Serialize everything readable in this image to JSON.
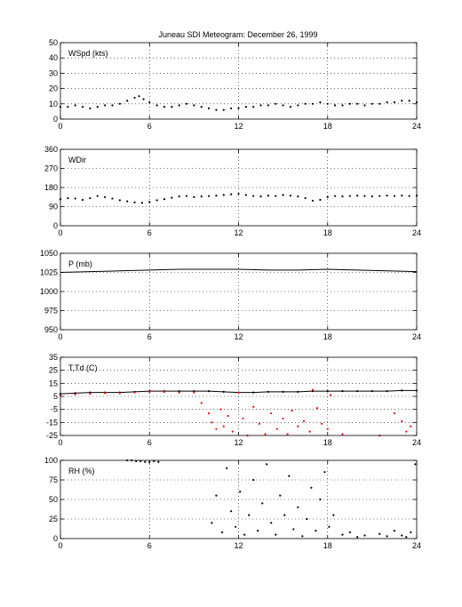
{
  "title": "Juneau SDI Meteogram:   December 26, 1999",
  "chart_data": [
    {
      "type": "scatter",
      "label": "WSpd (kts)",
      "ylim": [
        0,
        50
      ],
      "yticks": [
        0,
        10,
        20,
        30,
        40,
        50
      ],
      "xlim": [
        0,
        24
      ],
      "xticks": [
        0,
        6,
        12,
        18,
        24
      ],
      "grid": true,
      "series": [
        {
          "color": "#000000",
          "x": [
            0,
            0.5,
            1,
            1.5,
            2,
            2.5,
            3,
            3.5,
            4,
            4.5,
            5,
            5.3,
            5.6,
            6,
            6.5,
            7,
            7.5,
            8,
            8.5,
            9,
            9.5,
            10,
            10.5,
            11,
            11.5,
            12,
            12.5,
            13,
            13.5,
            14,
            14.5,
            15,
            15.5,
            16,
            16.5,
            17,
            17.5,
            18,
            18.5,
            19,
            19.5,
            20,
            20.5,
            21,
            21.5,
            22,
            22.5,
            23,
            23.5,
            24
          ],
          "y": [
            8,
            8,
            9,
            8,
            7,
            8,
            9,
            9,
            10,
            12,
            14,
            15,
            13,
            11,
            9,
            8,
            8,
            9,
            10,
            9,
            8,
            7,
            6,
            6,
            7,
            7,
            8,
            8,
            9,
            9,
            10,
            9,
            8,
            9,
            10,
            10,
            11,
            10,
            9,
            9,
            10,
            10,
            9,
            10,
            10,
            11,
            11,
            12,
            12,
            11
          ]
        }
      ]
    },
    {
      "type": "scatter",
      "label": "WDir",
      "ylim": [
        0,
        360
      ],
      "yticks": [
        0,
        90,
        180,
        270,
        360
      ],
      "xlim": [
        0,
        24
      ],
      "xticks": [
        0,
        6,
        12,
        18,
        24
      ],
      "grid": true,
      "series": [
        {
          "color": "#000000",
          "x": [
            0,
            0.5,
            1,
            1.5,
            2,
            2.5,
            3,
            3.5,
            4,
            4.5,
            5,
            5.5,
            6,
            6.5,
            7,
            7.5,
            8,
            8.5,
            9,
            9.5,
            10,
            10.5,
            11,
            11.5,
            12,
            12.5,
            13,
            13.5,
            14,
            14.5,
            15,
            15.5,
            16,
            16.5,
            17,
            17.5,
            18,
            18.5,
            19,
            19.5,
            20,
            20.5,
            21,
            21.5,
            22,
            22.5,
            23,
            23.5,
            24
          ],
          "y": [
            125,
            130,
            128,
            122,
            130,
            140,
            135,
            128,
            120,
            115,
            110,
            108,
            112,
            120,
            125,
            132,
            138,
            140,
            135,
            138,
            140,
            142,
            145,
            148,
            150,
            145,
            140,
            138,
            142,
            140,
            145,
            142,
            138,
            130,
            118,
            122,
            135,
            140,
            138,
            140,
            142,
            140,
            138,
            140,
            142,
            140,
            142,
            140,
            142
          ]
        }
      ]
    },
    {
      "type": "line",
      "label": "P (mb)",
      "ylim": [
        950,
        1050
      ],
      "yticks": [
        950,
        975,
        1000,
        1025,
        1050
      ],
      "xlim": [
        0,
        24
      ],
      "xticks": [
        0,
        6,
        12,
        18,
        24
      ],
      "grid": true,
      "series": [
        {
          "color": "#000000",
          "x": [
            0,
            2,
            4,
            6,
            8,
            10,
            12,
            14,
            16,
            18,
            20,
            22,
            24
          ],
          "y": [
            1025,
            1026,
            1027,
            1028,
            1029,
            1029,
            1029,
            1028,
            1028,
            1029,
            1028,
            1027,
            1026
          ]
        }
      ]
    },
    {
      "type": "scatter",
      "label": "T,Td (C)",
      "ylim": [
        -25,
        35
      ],
      "yticks": [
        -25,
        -15,
        -5,
        5,
        15,
        25,
        35
      ],
      "xlim": [
        0,
        24
      ],
      "xticks": [
        0,
        6,
        12,
        18,
        24
      ],
      "grid": true,
      "series": [
        {
          "color": "#000000",
          "x": [
            0,
            1,
            2,
            3,
            4,
            5,
            6,
            7,
            8,
            9,
            10,
            11,
            12,
            13,
            14,
            15,
            16,
            17,
            18,
            19,
            20,
            21,
            22,
            23,
            24
          ],
          "y": [
            7,
            7.5,
            8,
            8,
            8,
            8.5,
            9,
            9,
            9,
            9,
            9,
            8.5,
            8,
            8,
            8.5,
            8.5,
            8.5,
            9,
            9,
            9,
            9,
            9,
            9,
            9.5,
            9.5
          ]
        },
        {
          "color": "#ff0000",
          "x": [
            0,
            1,
            2,
            3,
            4,
            5,
            6,
            7,
            8,
            9,
            9.5,
            10,
            10.2,
            10.5,
            10.8,
            11,
            11.3,
            11.6,
            12,
            12.3,
            12.6,
            13,
            13.4,
            13.8,
            14.2,
            14.6,
            15,
            15.3,
            15.6,
            16,
            16.4,
            16.8,
            17,
            17.3,
            17.6,
            18,
            18.2,
            19,
            21.5,
            22.5,
            23,
            23.3,
            23.6
          ],
          "y": [
            6,
            6.5,
            7,
            7.5,
            7.5,
            8,
            8.5,
            8.5,
            8,
            8,
            0,
            -8,
            -15,
            -20,
            -5,
            -18,
            -10,
            -22,
            8,
            -12,
            -25,
            -3,
            -16,
            -24,
            -8,
            -20,
            -12,
            -24,
            -6,
            -18,
            -14,
            -22,
            10,
            -4,
            -16,
            -20,
            6,
            -24,
            -25,
            -8,
            -14,
            -22,
            -18
          ]
        }
      ]
    },
    {
      "type": "scatter",
      "label": "RH (%)",
      "ylim": [
        0,
        100
      ],
      "yticks": [
        0,
        25,
        50,
        75,
        100
      ],
      "xlim": [
        0,
        24
      ],
      "xticks": [
        0,
        6,
        12,
        18,
        24
      ],
      "grid": true,
      "series": [
        {
          "color": "#000000",
          "x": [
            4.5,
            4.8,
            5.1,
            5.4,
            5.7,
            6,
            6.3,
            6.6,
            10.2,
            10.5,
            10.9,
            11.2,
            11.5,
            11.8,
            12.1,
            12.4,
            12.7,
            13,
            13.3,
            13.6,
            13.9,
            14.2,
            14.5,
            14.8,
            15.1,
            15.4,
            15.7,
            16,
            16.3,
            16.6,
            16.9,
            17.2,
            17.5,
            17.8,
            18.1,
            18.4,
            19,
            19.5,
            20,
            20.5,
            21.5,
            22,
            22.5,
            23,
            23.3,
            23.6,
            23.9
          ],
          "y": [
            100,
            100,
            99,
            99,
            98,
            98,
            99,
            98,
            20,
            55,
            8,
            90,
            35,
            15,
            60,
            5,
            30,
            75,
            10,
            45,
            95,
            20,
            5,
            55,
            30,
            80,
            12,
            40,
            3,
            25,
            65,
            10,
            50,
            85,
            15,
            30,
            5,
            8,
            2,
            4,
            6,
            3,
            10,
            4,
            2,
            8,
            95
          ]
        }
      ]
    }
  ]
}
